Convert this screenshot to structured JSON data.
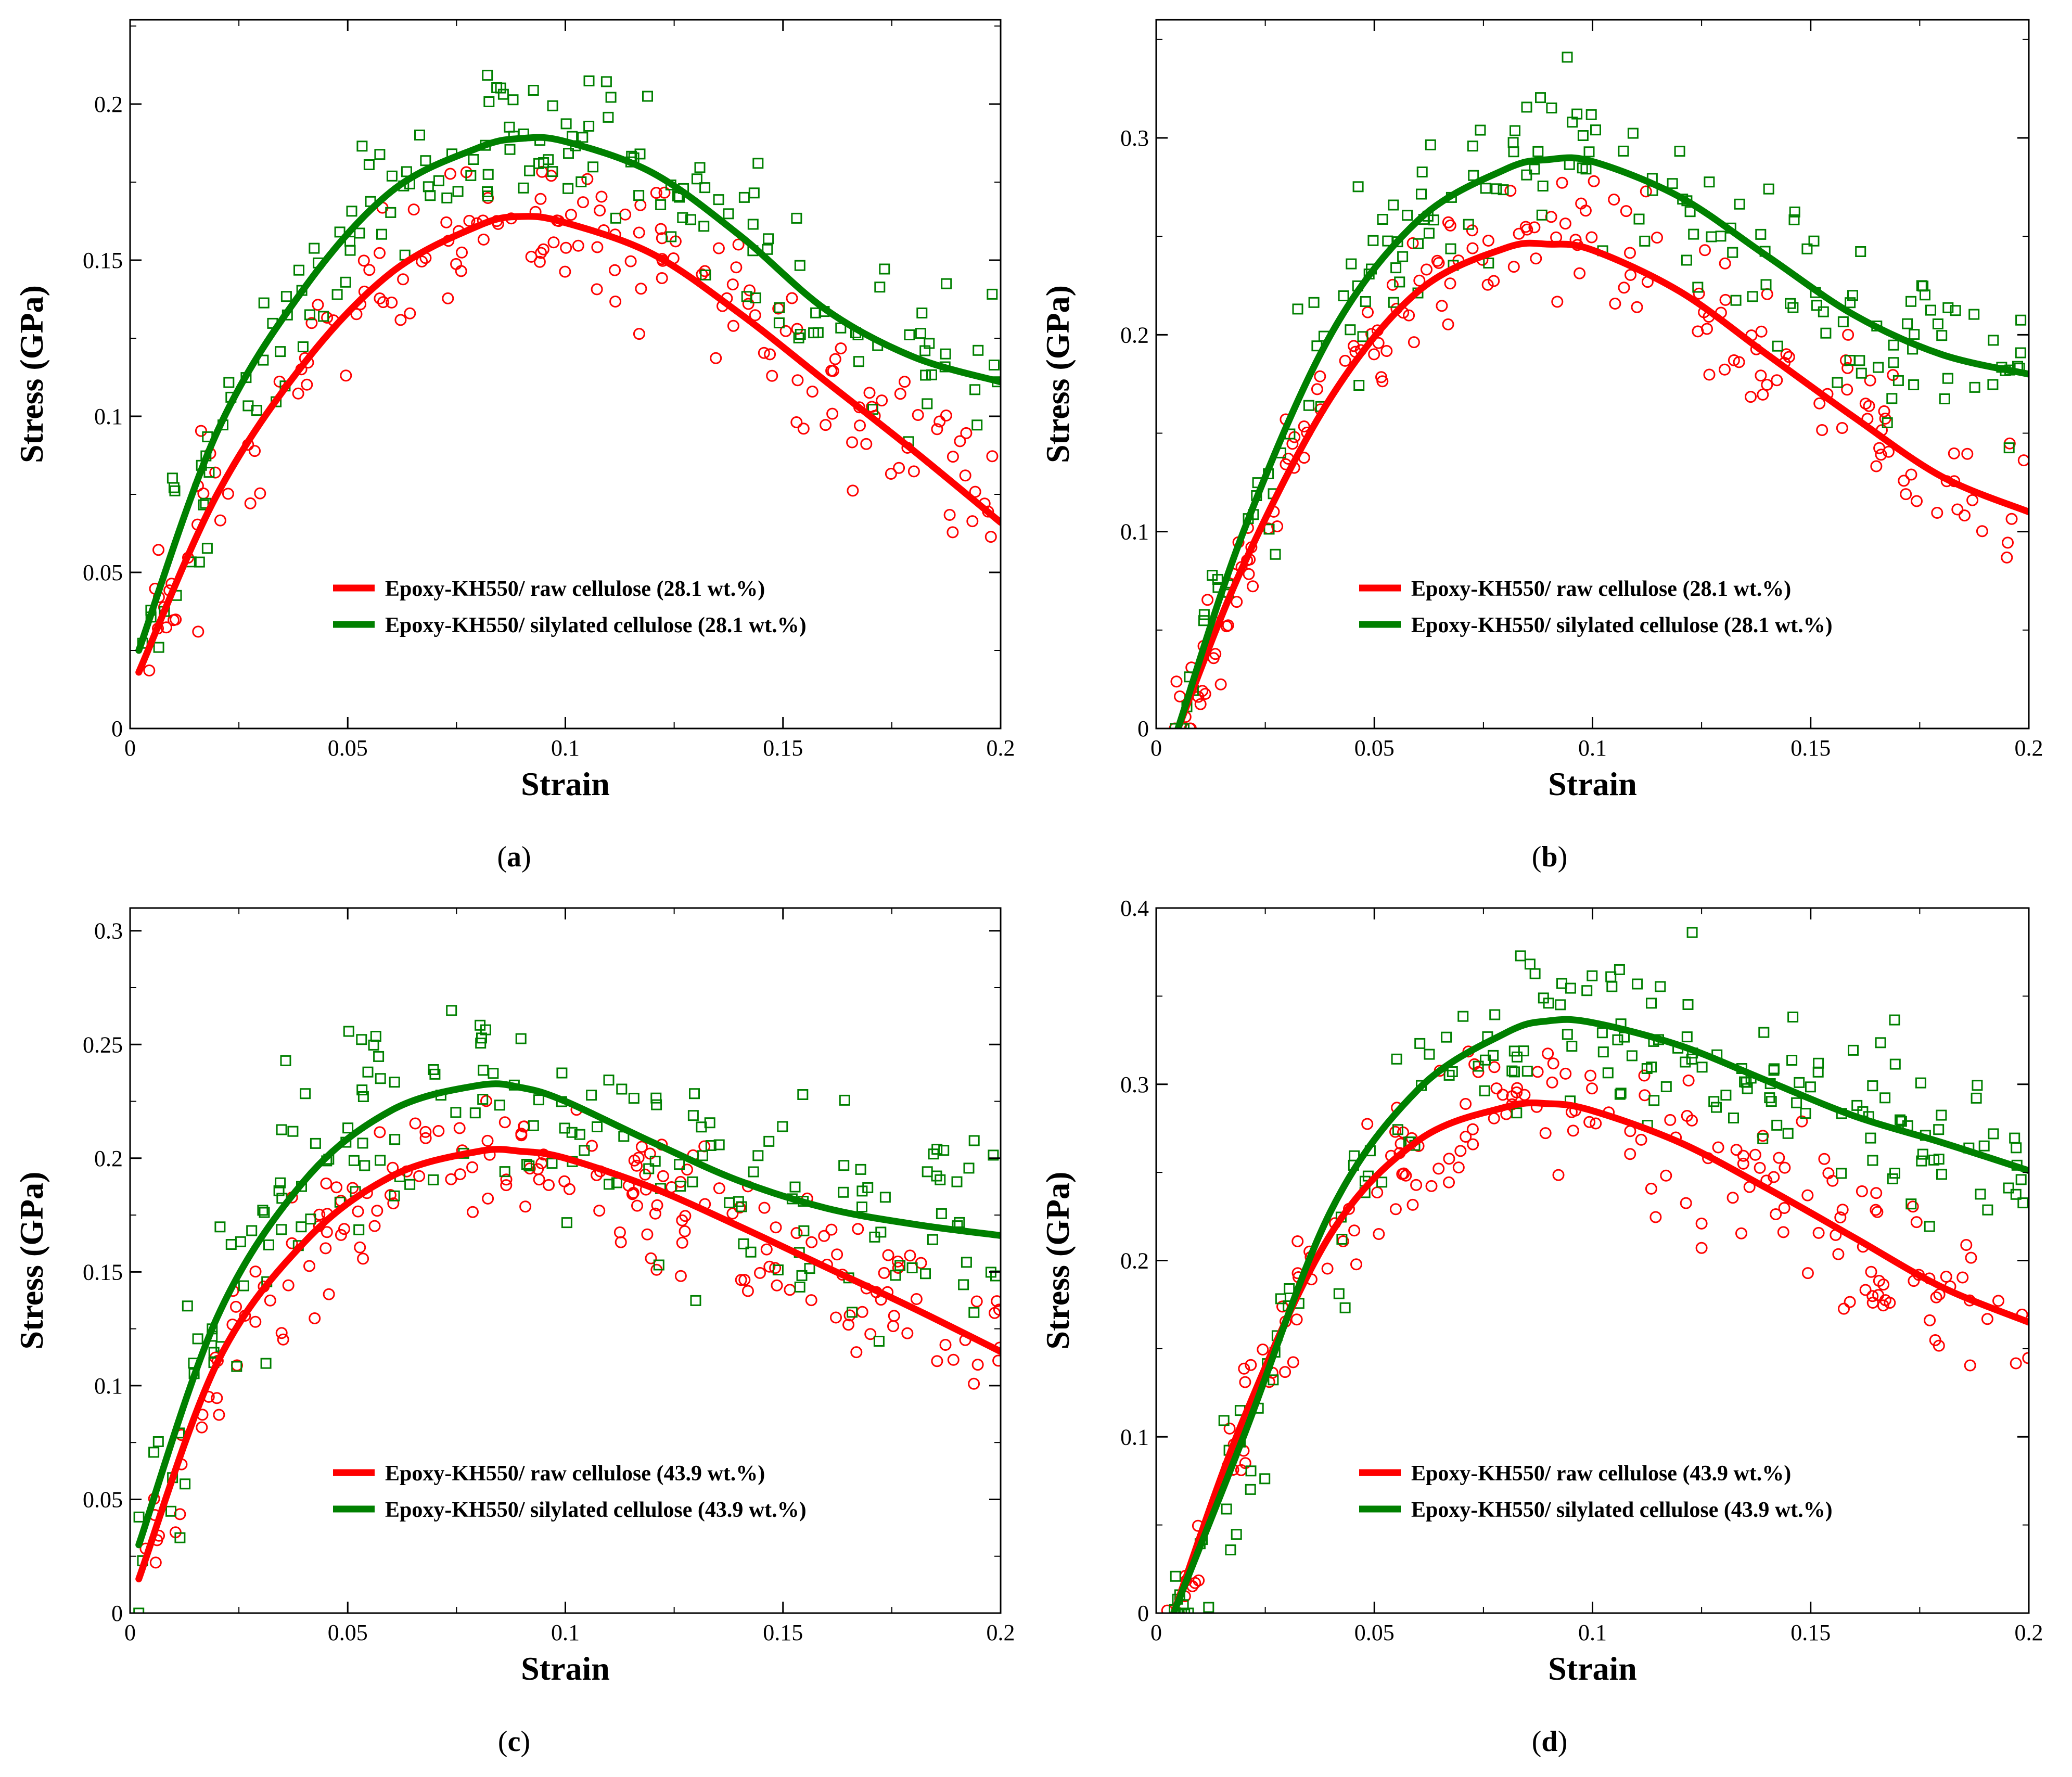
{
  "colors": {
    "raw": "#ff0000",
    "silylated": "#008000",
    "axis": "#000000"
  },
  "chart_data": [
    {
      "id": "a",
      "type": "scatter",
      "caption": {
        "open": "(",
        "letter": "a",
        "close": ")"
      },
      "xlabel": "Strain",
      "ylabel": "Stress (GPa)",
      "xlim": [
        0,
        0.2
      ],
      "ylim": [
        0,
        0.227
      ],
      "xticks": [
        {
          "v": 0,
          "label": "0"
        },
        {
          "v": 0.05,
          "label": "0.05"
        },
        {
          "v": 0.1,
          "label": "0.1"
        },
        {
          "v": 0.15,
          "label": "0.15"
        },
        {
          "v": 0.2,
          "label": "0.2"
        }
      ],
      "yticks": [
        {
          "v": 0,
          "label": "0"
        },
        {
          "v": 0.05,
          "label": "0.05"
        },
        {
          "v": 0.1,
          "label": "0.1"
        },
        {
          "v": 0.15,
          "label": "0.15"
        },
        {
          "v": 0.2,
          "label": "0.2"
        }
      ],
      "legend_position": "bottom-right",
      "series": [
        {
          "name": "Epoxy-KH550/ raw cellulose (28.1 wt.%)",
          "key": "raw",
          "marker": "circle",
          "fit_x": [
            0.002,
            0.02,
            0.04,
            0.06,
            0.08,
            0.09,
            0.1,
            0.12,
            0.14,
            0.16,
            0.18,
            0.2
          ],
          "fit_y": [
            0.018,
            0.075,
            0.117,
            0.146,
            0.161,
            0.164,
            0.162,
            0.152,
            0.133,
            0.111,
            0.089,
            0.066
          ],
          "scatter": {
            "seed": 11,
            "n": 170,
            "spread": 0.016
          }
        },
        {
          "name": "Epoxy-KH550/ silylated cellulose (28.1 wt.%)",
          "key": "silylated",
          "marker": "square",
          "fit_x": [
            0.002,
            0.02,
            0.04,
            0.06,
            0.08,
            0.09,
            0.1,
            0.12,
            0.14,
            0.16,
            0.18,
            0.2
          ],
          "fit_y": [
            0.025,
            0.095,
            0.141,
            0.172,
            0.186,
            0.189,
            0.188,
            0.178,
            0.158,
            0.134,
            0.119,
            0.111
          ],
          "scatter": {
            "seed": 23,
            "n": 170,
            "spread": 0.018
          }
        }
      ]
    },
    {
      "id": "b",
      "type": "scatter",
      "caption": {
        "open": "(",
        "letter": "b",
        "close": ")"
      },
      "xlabel": "Strain",
      "ylabel": "Stress (GPa)",
      "xlim": [
        0,
        0.2
      ],
      "ylim": [
        0,
        0.36
      ],
      "xticks": [
        {
          "v": 0,
          "label": "0"
        },
        {
          "v": 0.05,
          "label": "0.05"
        },
        {
          "v": 0.1,
          "label": "0.1"
        },
        {
          "v": 0.15,
          "label": "0.15"
        },
        {
          "v": 0.2,
          "label": "0.2"
        }
      ],
      "yticks": [
        {
          "v": 0,
          "label": "0"
        },
        {
          "v": 0.1,
          "label": "0.1"
        },
        {
          "v": 0.2,
          "label": "0.2"
        },
        {
          "v": 0.3,
          "label": "0.3"
        }
      ],
      "legend_position": "bottom-right",
      "series": [
        {
          "name": "Epoxy-KH550/ raw cellulose (28.1 wt.%)",
          "key": "raw",
          "marker": "circle",
          "fit_x": [
            0.005,
            0.02,
            0.04,
            0.06,
            0.08,
            0.09,
            0.1,
            0.12,
            0.14,
            0.16,
            0.18,
            0.2
          ],
          "fit_y": [
            0.0,
            0.083,
            0.168,
            0.222,
            0.244,
            0.246,
            0.243,
            0.222,
            0.19,
            0.158,
            0.128,
            0.11
          ],
          "scatter": {
            "seed": 37,
            "n": 170,
            "spread": 0.022
          }
        },
        {
          "name": "Epoxy-KH550/ silylated cellulose (28.1 wt.%)",
          "key": "silylated",
          "marker": "square",
          "fit_x": [
            0.005,
            0.02,
            0.04,
            0.06,
            0.08,
            0.09,
            0.1,
            0.12,
            0.14,
            0.16,
            0.18,
            0.2
          ],
          "fit_y": [
            0.0,
            0.1,
            0.2,
            0.258,
            0.284,
            0.289,
            0.288,
            0.27,
            0.24,
            0.21,
            0.19,
            0.18
          ],
          "scatter": {
            "seed": 41,
            "n": 170,
            "spread": 0.03
          }
        }
      ]
    },
    {
      "id": "c",
      "type": "scatter",
      "caption": {
        "open": "(",
        "letter": "c",
        "close": ")"
      },
      "xlabel": "Strain",
      "ylabel": "Stress (GPa)",
      "xlim": [
        0,
        0.2
      ],
      "ylim": [
        0,
        0.31
      ],
      "xticks": [
        {
          "v": 0,
          "label": "0"
        },
        {
          "v": 0.05,
          "label": "0.05"
        },
        {
          "v": 0.1,
          "label": "0.1"
        },
        {
          "v": 0.15,
          "label": "0.15"
        },
        {
          "v": 0.2,
          "label": "0.2"
        }
      ],
      "yticks": [
        {
          "v": 0,
          "label": "0"
        },
        {
          "v": 0.05,
          "label": "0.05"
        },
        {
          "v": 0.1,
          "label": "0.1"
        },
        {
          "v": 0.15,
          "label": "0.15"
        },
        {
          "v": 0.2,
          "label": "0.2"
        },
        {
          "v": 0.25,
          "label": "0.25"
        },
        {
          "v": 0.3,
          "label": "0.3"
        }
      ],
      "legend_position": "bottom-right",
      "series": [
        {
          "name": "Epoxy-KH550/ raw cellulose (43.9 wt.%)",
          "key": "raw",
          "marker": "circle",
          "fit_x": [
            0.002,
            0.02,
            0.04,
            0.06,
            0.08,
            0.09,
            0.1,
            0.12,
            0.14,
            0.16,
            0.18,
            0.2
          ],
          "fit_y": [
            0.015,
            0.11,
            0.163,
            0.192,
            0.203,
            0.203,
            0.2,
            0.187,
            0.17,
            0.152,
            0.134,
            0.115
          ],
          "scatter": {
            "seed": 53,
            "n": 180,
            "spread": 0.022
          }
        },
        {
          "name": "Epoxy-KH550/ silylated cellulose (43.9 wt.%)",
          "key": "silylated",
          "marker": "square",
          "fit_x": [
            0.002,
            0.02,
            0.04,
            0.06,
            0.08,
            0.09,
            0.1,
            0.12,
            0.14,
            0.16,
            0.18,
            0.2
          ],
          "fit_y": [
            0.03,
            0.13,
            0.19,
            0.221,
            0.232,
            0.231,
            0.225,
            0.207,
            0.19,
            0.178,
            0.171,
            0.166
          ],
          "scatter": {
            "seed": 67,
            "n": 180,
            "spread": 0.035
          }
        }
      ]
    },
    {
      "id": "d",
      "type": "scatter",
      "caption": {
        "open": "(",
        "letter": "d",
        "close": ")"
      },
      "xlabel": "Strain",
      "ylabel": "Stress (GPa)",
      "xlim": [
        0,
        0.2
      ],
      "ylim": [
        0,
        0.4
      ],
      "xticks": [
        {
          "v": 0,
          "label": "0"
        },
        {
          "v": 0.05,
          "label": "0.05"
        },
        {
          "v": 0.1,
          "label": "0.1"
        },
        {
          "v": 0.15,
          "label": "0.15"
        },
        {
          "v": 0.2,
          "label": "0.2"
        }
      ],
      "yticks": [
        {
          "v": 0,
          "label": "0"
        },
        {
          "v": 0.1,
          "label": "0.1"
        },
        {
          "v": 0.2,
          "label": "0.2"
        },
        {
          "v": 0.3,
          "label": "0.3"
        },
        {
          "v": 0.4,
          "label": "0.4"
        }
      ],
      "legend_position": "bottom-right",
      "series": [
        {
          "name": "Epoxy-KH550/ raw cellulose (43.9 wt.%)",
          "key": "raw",
          "marker": "circle",
          "fit_x": [
            0.004,
            0.02,
            0.04,
            0.06,
            0.08,
            0.09,
            0.1,
            0.12,
            0.14,
            0.16,
            0.18,
            0.2
          ],
          "fit_y": [
            0.0,
            0.11,
            0.215,
            0.268,
            0.287,
            0.289,
            0.285,
            0.267,
            0.241,
            0.213,
            0.185,
            0.165
          ],
          "scatter": {
            "seed": 79,
            "n": 180,
            "spread": 0.03
          }
        },
        {
          "name": "Epoxy-KH550/ silylated cellulose (43.9 wt.%)",
          "key": "silylated",
          "marker": "square",
          "fit_x": [
            0.004,
            0.02,
            0.04,
            0.06,
            0.08,
            0.09,
            0.1,
            0.12,
            0.14,
            0.16,
            0.18,
            0.2
          ],
          "fit_y": [
            0.0,
            0.1,
            0.228,
            0.297,
            0.329,
            0.336,
            0.335,
            0.322,
            0.302,
            0.282,
            0.267,
            0.251
          ],
          "scatter": {
            "seed": 83,
            "n": 180,
            "spread": 0.035
          }
        }
      ]
    }
  ]
}
